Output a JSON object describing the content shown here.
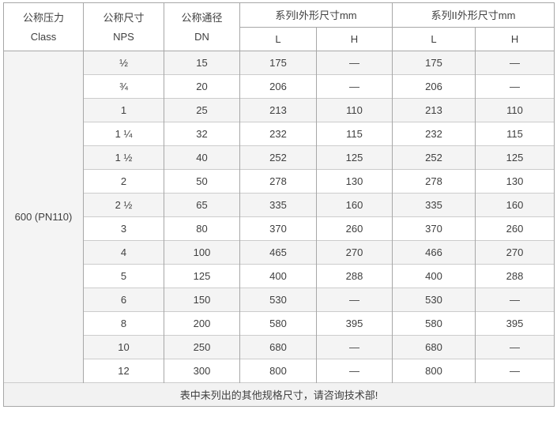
{
  "table": {
    "header": {
      "pressure_cn": "公称压力",
      "pressure_en": "Class",
      "size_cn": "公称尺寸",
      "size_en": "NPS",
      "bore_cn": "公称通径",
      "bore_en": "DN",
      "series1_title": "系列I外形尺寸mm",
      "series2_title": "系列II外形尺寸mm",
      "sub_l1": "L",
      "sub_h1": "H",
      "sub_l2": "L",
      "sub_h2": "H"
    },
    "pressure_class": "600 (PN110)",
    "rows": [
      {
        "nps": "½",
        "dn": "15",
        "l1": "175",
        "h1": "—",
        "l2": "175",
        "h2": "—"
      },
      {
        "nps": "¾",
        "dn": "20",
        "l1": "206",
        "h1": "—",
        "l2": "206",
        "h2": "—"
      },
      {
        "nps": "1",
        "dn": "25",
        "l1": "213",
        "h1": "110",
        "l2": "213",
        "h2": "110"
      },
      {
        "nps": "1 ¼",
        "dn": "32",
        "l1": "232",
        "h1": "115",
        "l2": "232",
        "h2": "115"
      },
      {
        "nps": "1 ½",
        "dn": "40",
        "l1": "252",
        "h1": "125",
        "l2": "252",
        "h2": "125"
      },
      {
        "nps": "2",
        "dn": "50",
        "l1": "278",
        "h1": "130",
        "l2": "278",
        "h2": "130"
      },
      {
        "nps": "2 ½",
        "dn": "65",
        "l1": "335",
        "h1": "160",
        "l2": "335",
        "h2": "160"
      },
      {
        "nps": "3",
        "dn": "80",
        "l1": "370",
        "h1": "260",
        "l2": "370",
        "h2": "260"
      },
      {
        "nps": "4",
        "dn": "100",
        "l1": "465",
        "h1": "270",
        "l2": "466",
        "h2": "270"
      },
      {
        "nps": "5",
        "dn": "125",
        "l1": "400",
        "h1": "288",
        "l2": "400",
        "h2": "288"
      },
      {
        "nps": "6",
        "dn": "150",
        "l1": "530",
        "h1": "—",
        "l2": "530",
        "h2": "—"
      },
      {
        "nps": "8",
        "dn": "200",
        "l1": "580",
        "h1": "395",
        "l2": "580",
        "h2": "395"
      },
      {
        "nps": "10",
        "dn": "250",
        "l1": "680",
        "h1": "—",
        "l2": "680",
        "h2": "—"
      },
      {
        "nps": "12",
        "dn": "300",
        "l1": "800",
        "h1": "—",
        "l2": "800",
        "h2": "—"
      }
    ],
    "footer_note": "表中未列出的其他规格尺寸，请咨询技术部!"
  },
  "colors": {
    "stripe_background": "#f4f4f4",
    "border_dark": "#a7a7a7",
    "border_light": "#cccccc",
    "text": "#404040"
  }
}
